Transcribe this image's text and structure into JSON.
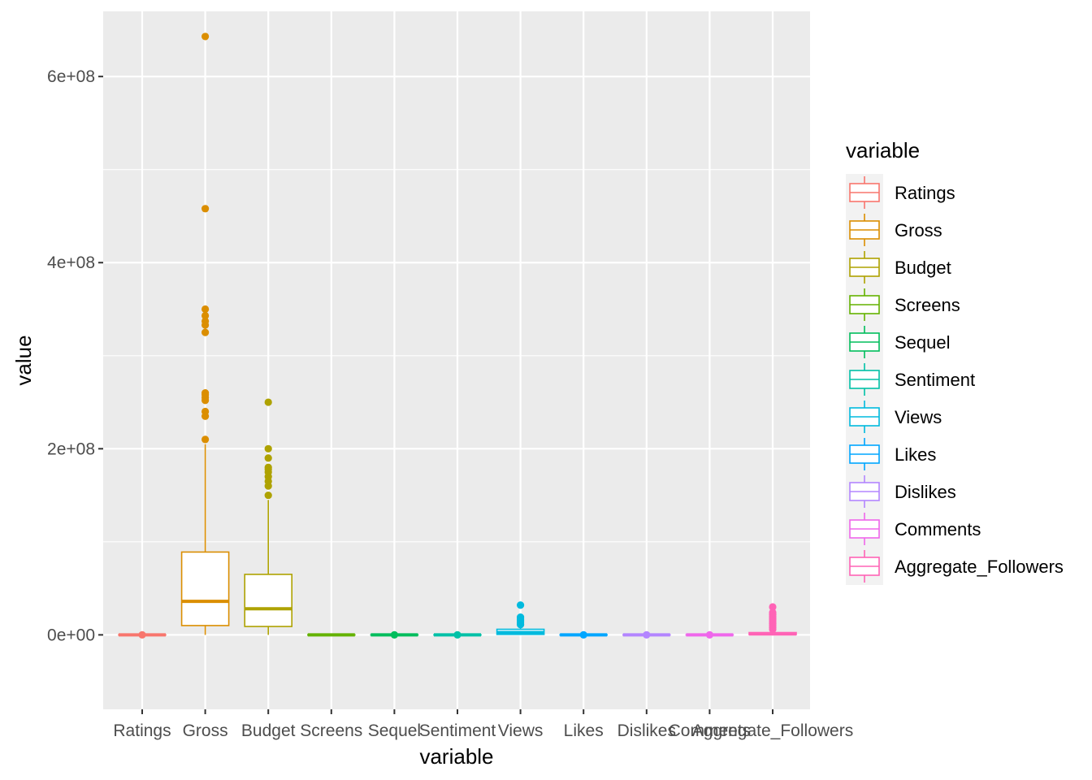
{
  "chart_data": {
    "type": "boxplot",
    "xlabel": "variable",
    "ylabel": "value",
    "legend_title": "variable",
    "legend_position": "right",
    "grid": true,
    "ylim": [
      -80000000,
      670000000
    ],
    "y_ticks": [
      0,
      200000000,
      400000000,
      600000000
    ],
    "y_tick_labels": [
      "0e+00",
      "2e+08",
      "4e+08",
      "6e+08"
    ],
    "y_minor_ticks": [
      100000000,
      300000000,
      500000000
    ],
    "categories": [
      "Ratings",
      "Gross",
      "Budget",
      "Screens",
      "Sequel",
      "Sentiment",
      "Views",
      "Likes",
      "Dislikes",
      "Comments",
      "Aggregate_Followers"
    ],
    "colors": [
      "#F8766D",
      "#DB8E00",
      "#AEA200",
      "#64B200",
      "#00BD5C",
      "#00C1A7",
      "#00BADE",
      "#00A6FF",
      "#B385FF",
      "#EF67EB",
      "#FF63B6"
    ],
    "series": [
      {
        "name": "Ratings",
        "min": 0,
        "q1": 0,
        "median": 0,
        "q3": 0,
        "max": 0,
        "outliers": [
          0
        ]
      },
      {
        "name": "Gross",
        "min": 0,
        "q1": 10000000,
        "median": 36000000,
        "q3": 89000000,
        "max": 205000000,
        "outliers": [
          210000000,
          235000000,
          240000000,
          252000000,
          255000000,
          258000000,
          260000000,
          325000000,
          333000000,
          337000000,
          343000000,
          350000000,
          458000000,
          643000000
        ]
      },
      {
        "name": "Budget",
        "min": 0,
        "q1": 9000000,
        "median": 28000000,
        "q3": 65000000,
        "max": 145000000,
        "outliers": [
          150000000,
          160000000,
          165000000,
          170000000,
          175000000,
          178000000,
          180000000,
          190000000,
          200000000,
          250000000
        ]
      },
      {
        "name": "Screens",
        "min": 0,
        "q1": 0,
        "median": 0,
        "q3": 0,
        "max": 0,
        "outliers": []
      },
      {
        "name": "Sequel",
        "min": 0,
        "q1": 0,
        "median": 0,
        "q3": 0,
        "max": 0,
        "outliers": [
          0
        ]
      },
      {
        "name": "Sentiment",
        "min": 0,
        "q1": 0,
        "median": 0,
        "q3": 0,
        "max": 0,
        "outliers": [
          0
        ]
      },
      {
        "name": "Views",
        "min": 0,
        "q1": 500000,
        "median": 2500000,
        "q3": 6000000,
        "max": 9000000,
        "outliers": [
          11000000,
          13000000,
          15000000,
          17000000,
          19000000,
          32000000
        ]
      },
      {
        "name": "Likes",
        "min": 0,
        "q1": 0,
        "median": 0,
        "q3": 0,
        "max": 0,
        "outliers": [
          0
        ]
      },
      {
        "name": "Dislikes",
        "min": 0,
        "q1": 0,
        "median": 0,
        "q3": 0,
        "max": 0,
        "outliers": [
          0
        ]
      },
      {
        "name": "Comments",
        "min": 0,
        "q1": 0,
        "median": 0,
        "q3": 0,
        "max": 0,
        "outliers": [
          0
        ]
      },
      {
        "name": "Aggregate_Followers",
        "min": 0,
        "q1": 300000,
        "median": 1000000,
        "q3": 2500000,
        "max": 5000000,
        "outliers": [
          6000000,
          8000000,
          10000000,
          12000000,
          14000000,
          16000000,
          18000000,
          20000000,
          22000000,
          24000000,
          30000000
        ]
      }
    ]
  }
}
